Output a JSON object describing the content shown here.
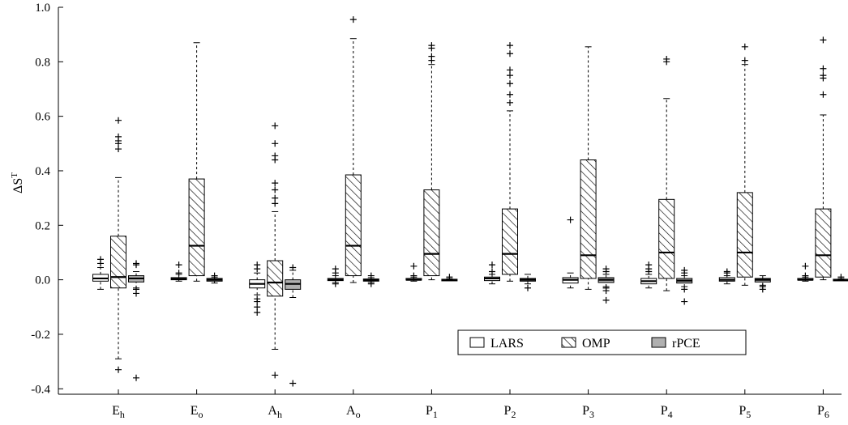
{
  "chart_data": {
    "type": "boxplot",
    "title": "",
    "xlabel": "",
    "ylabel": "ΔS",
    "ylabel_superscript": "T",
    "ylim": [
      -0.42,
      1.0
    ],
    "yticks": [
      -0.4,
      -0.2,
      0.0,
      0.2,
      0.4,
      0.6,
      0.8,
      1.0
    ],
    "ytick_labels": [
      "-0.4",
      "-0.2",
      "0.0",
      "0.2",
      "0.4",
      "0.6",
      "0.8",
      "1.0"
    ],
    "grid": false,
    "legend_position": "bottom-right",
    "categories": [
      {
        "base": "E",
        "sub": "h"
      },
      {
        "base": "E",
        "sub": "o"
      },
      {
        "base": "A",
        "sub": "h"
      },
      {
        "base": "A",
        "sub": "o"
      },
      {
        "base": "P",
        "sub": "1"
      },
      {
        "base": "P",
        "sub": "2"
      },
      {
        "base": "P",
        "sub": "3"
      },
      {
        "base": "P",
        "sub": "4"
      },
      {
        "base": "P",
        "sub": "5"
      },
      {
        "base": "P",
        "sub": "6"
      }
    ],
    "series": [
      {
        "name": "LARS",
        "fill": "#ffffff",
        "pattern": "none",
        "boxes": [
          {
            "whisker_low": -0.035,
            "q1": -0.005,
            "median": 0.005,
            "q3": 0.02,
            "whisker_high": 0.045,
            "outliers": [
              0.06,
              0.075
            ]
          },
          {
            "whisker_low": -0.005,
            "q1": 0.0,
            "median": 0.003,
            "q3": 0.008,
            "whisker_high": 0.02,
            "outliers": [
              0.025,
              0.055
            ]
          },
          {
            "whisker_low": -0.055,
            "q1": -0.03,
            "median": -0.015,
            "q3": 0.0,
            "whisker_high": 0.025,
            "outliers": [
              0.04,
              0.055,
              -0.07,
              -0.08,
              -0.1,
              -0.12
            ]
          },
          {
            "whisker_low": -0.01,
            "q1": -0.003,
            "median": 0.0,
            "q3": 0.005,
            "whisker_high": 0.015,
            "outliers": [
              0.025,
              0.04,
              -0.015
            ]
          },
          {
            "whisker_low": -0.005,
            "q1": -0.001,
            "median": 0.0,
            "q3": 0.005,
            "whisker_high": 0.01,
            "outliers": [
              0.015,
              0.05
            ]
          },
          {
            "whisker_low": -0.015,
            "q1": -0.003,
            "median": 0.005,
            "q3": 0.01,
            "whisker_high": 0.02,
            "outliers": [
              0.03,
              0.055
            ]
          },
          {
            "whisker_low": -0.03,
            "q1": -0.012,
            "median": 0.0,
            "q3": 0.008,
            "whisker_high": 0.025,
            "outliers": [
              0.22
            ]
          },
          {
            "whisker_low": -0.03,
            "q1": -0.015,
            "median": -0.005,
            "q3": 0.005,
            "whisker_high": 0.02,
            "outliers": [
              0.03,
              0.04,
              0.055
            ]
          },
          {
            "whisker_low": -0.015,
            "q1": -0.005,
            "median": 0.0,
            "q3": 0.008,
            "whisker_high": 0.015,
            "outliers": [
              0.025,
              0.03
            ]
          },
          {
            "whisker_low": -0.005,
            "q1": -0.001,
            "median": 0.0,
            "q3": 0.005,
            "whisker_high": 0.01,
            "outliers": [
              0.015,
              0.05
            ]
          }
        ]
      },
      {
        "name": "OMP",
        "fill": "#ffffff",
        "pattern": "hatch",
        "boxes": [
          {
            "whisker_low": -0.29,
            "q1": -0.03,
            "median": 0.01,
            "q3": 0.16,
            "whisker_high": 0.375,
            "outliers": [
              0.48,
              0.5,
              0.51,
              0.525,
              0.585,
              -0.33
            ]
          },
          {
            "whisker_low": -0.005,
            "q1": 0.015,
            "median": 0.125,
            "q3": 0.37,
            "whisker_high": 0.87,
            "outliers": []
          },
          {
            "whisker_low": -0.255,
            "q1": -0.06,
            "median": -0.01,
            "q3": 0.07,
            "whisker_high": 0.25,
            "outliers": [
              0.28,
              0.3,
              0.33,
              0.355,
              0.44,
              0.455,
              0.5,
              0.565,
              -0.35
            ]
          },
          {
            "whisker_low": -0.01,
            "q1": 0.015,
            "median": 0.125,
            "q3": 0.385,
            "whisker_high": 0.885,
            "outliers": [
              0.955
            ]
          },
          {
            "whisker_low": 0.0,
            "q1": 0.015,
            "median": 0.095,
            "q3": 0.33,
            "whisker_high": 0.79,
            "outliers": [
              0.805,
              0.82,
              0.85,
              0.86
            ]
          },
          {
            "whisker_low": -0.005,
            "q1": 0.02,
            "median": 0.095,
            "q3": 0.26,
            "whisker_high": 0.62,
            "outliers": [
              0.65,
              0.68,
              0.72,
              0.75,
              0.77,
              0.83,
              0.86
            ]
          },
          {
            "whisker_low": -0.035,
            "q1": 0.005,
            "median": 0.09,
            "q3": 0.44,
            "whisker_high": 0.855,
            "outliers": []
          },
          {
            "whisker_low": -0.04,
            "q1": 0.005,
            "median": 0.1,
            "q3": 0.295,
            "whisker_high": 0.665,
            "outliers": [
              0.8,
              0.81
            ]
          },
          {
            "whisker_low": -0.02,
            "q1": 0.01,
            "median": 0.1,
            "q3": 0.32,
            "whisker_high": 0.79,
            "outliers": [
              0.805,
              0.855
            ]
          },
          {
            "whisker_low": 0.0,
            "q1": 0.01,
            "median": 0.09,
            "q3": 0.26,
            "whisker_high": 0.605,
            "outliers": [
              0.68,
              0.74,
              0.75,
              0.775,
              0.88
            ]
          }
        ]
      },
      {
        "name": "rPCE",
        "fill": "#b0b0b0",
        "pattern": "none",
        "boxes": [
          {
            "whisker_low": -0.03,
            "q1": -0.008,
            "median": 0.005,
            "q3": 0.015,
            "whisker_high": 0.03,
            "outliers": [
              0.055,
              0.06,
              -0.035,
              -0.05,
              -0.36
            ]
          },
          {
            "whisker_low": -0.012,
            "q1": -0.005,
            "median": 0.0,
            "q3": 0.005,
            "whisker_high": 0.01,
            "outliers": [
              0.015
            ]
          },
          {
            "whisker_low": -0.065,
            "q1": -0.035,
            "median": -0.015,
            "q3": 0.0,
            "whisker_high": 0.035,
            "outliers": [
              0.045,
              -0.38
            ]
          },
          {
            "whisker_low": -0.01,
            "q1": -0.005,
            "median": -0.001,
            "q3": 0.003,
            "whisker_high": 0.008,
            "outliers": [
              0.015,
              -0.015
            ]
          },
          {
            "whisker_low": -0.003,
            "q1": -0.001,
            "median": 0.0,
            "q3": 0.002,
            "whisker_high": 0.004,
            "outliers": [
              0.01
            ]
          },
          {
            "whisker_low": -0.015,
            "q1": -0.005,
            "median": 0.0,
            "q3": 0.005,
            "whisker_high": 0.02,
            "outliers": [
              -0.03
            ]
          },
          {
            "whisker_low": -0.025,
            "q1": -0.01,
            "median": 0.0,
            "q3": 0.008,
            "whisker_high": 0.02,
            "outliers": [
              0.03,
              0.04,
              -0.03,
              -0.04,
              -0.075
            ]
          },
          {
            "whisker_low": -0.025,
            "q1": -0.012,
            "median": -0.003,
            "q3": 0.005,
            "whisker_high": 0.015,
            "outliers": [
              0.025,
              0.035,
              -0.035,
              -0.08
            ]
          },
          {
            "whisker_low": -0.02,
            "q1": -0.008,
            "median": 0.0,
            "q3": 0.005,
            "whisker_high": 0.015,
            "outliers": [
              -0.025,
              -0.035
            ]
          },
          {
            "whisker_low": -0.003,
            "q1": -0.001,
            "median": 0.0,
            "q3": 0.002,
            "whisker_high": 0.004,
            "outliers": [
              0.01
            ]
          }
        ]
      }
    ]
  }
}
